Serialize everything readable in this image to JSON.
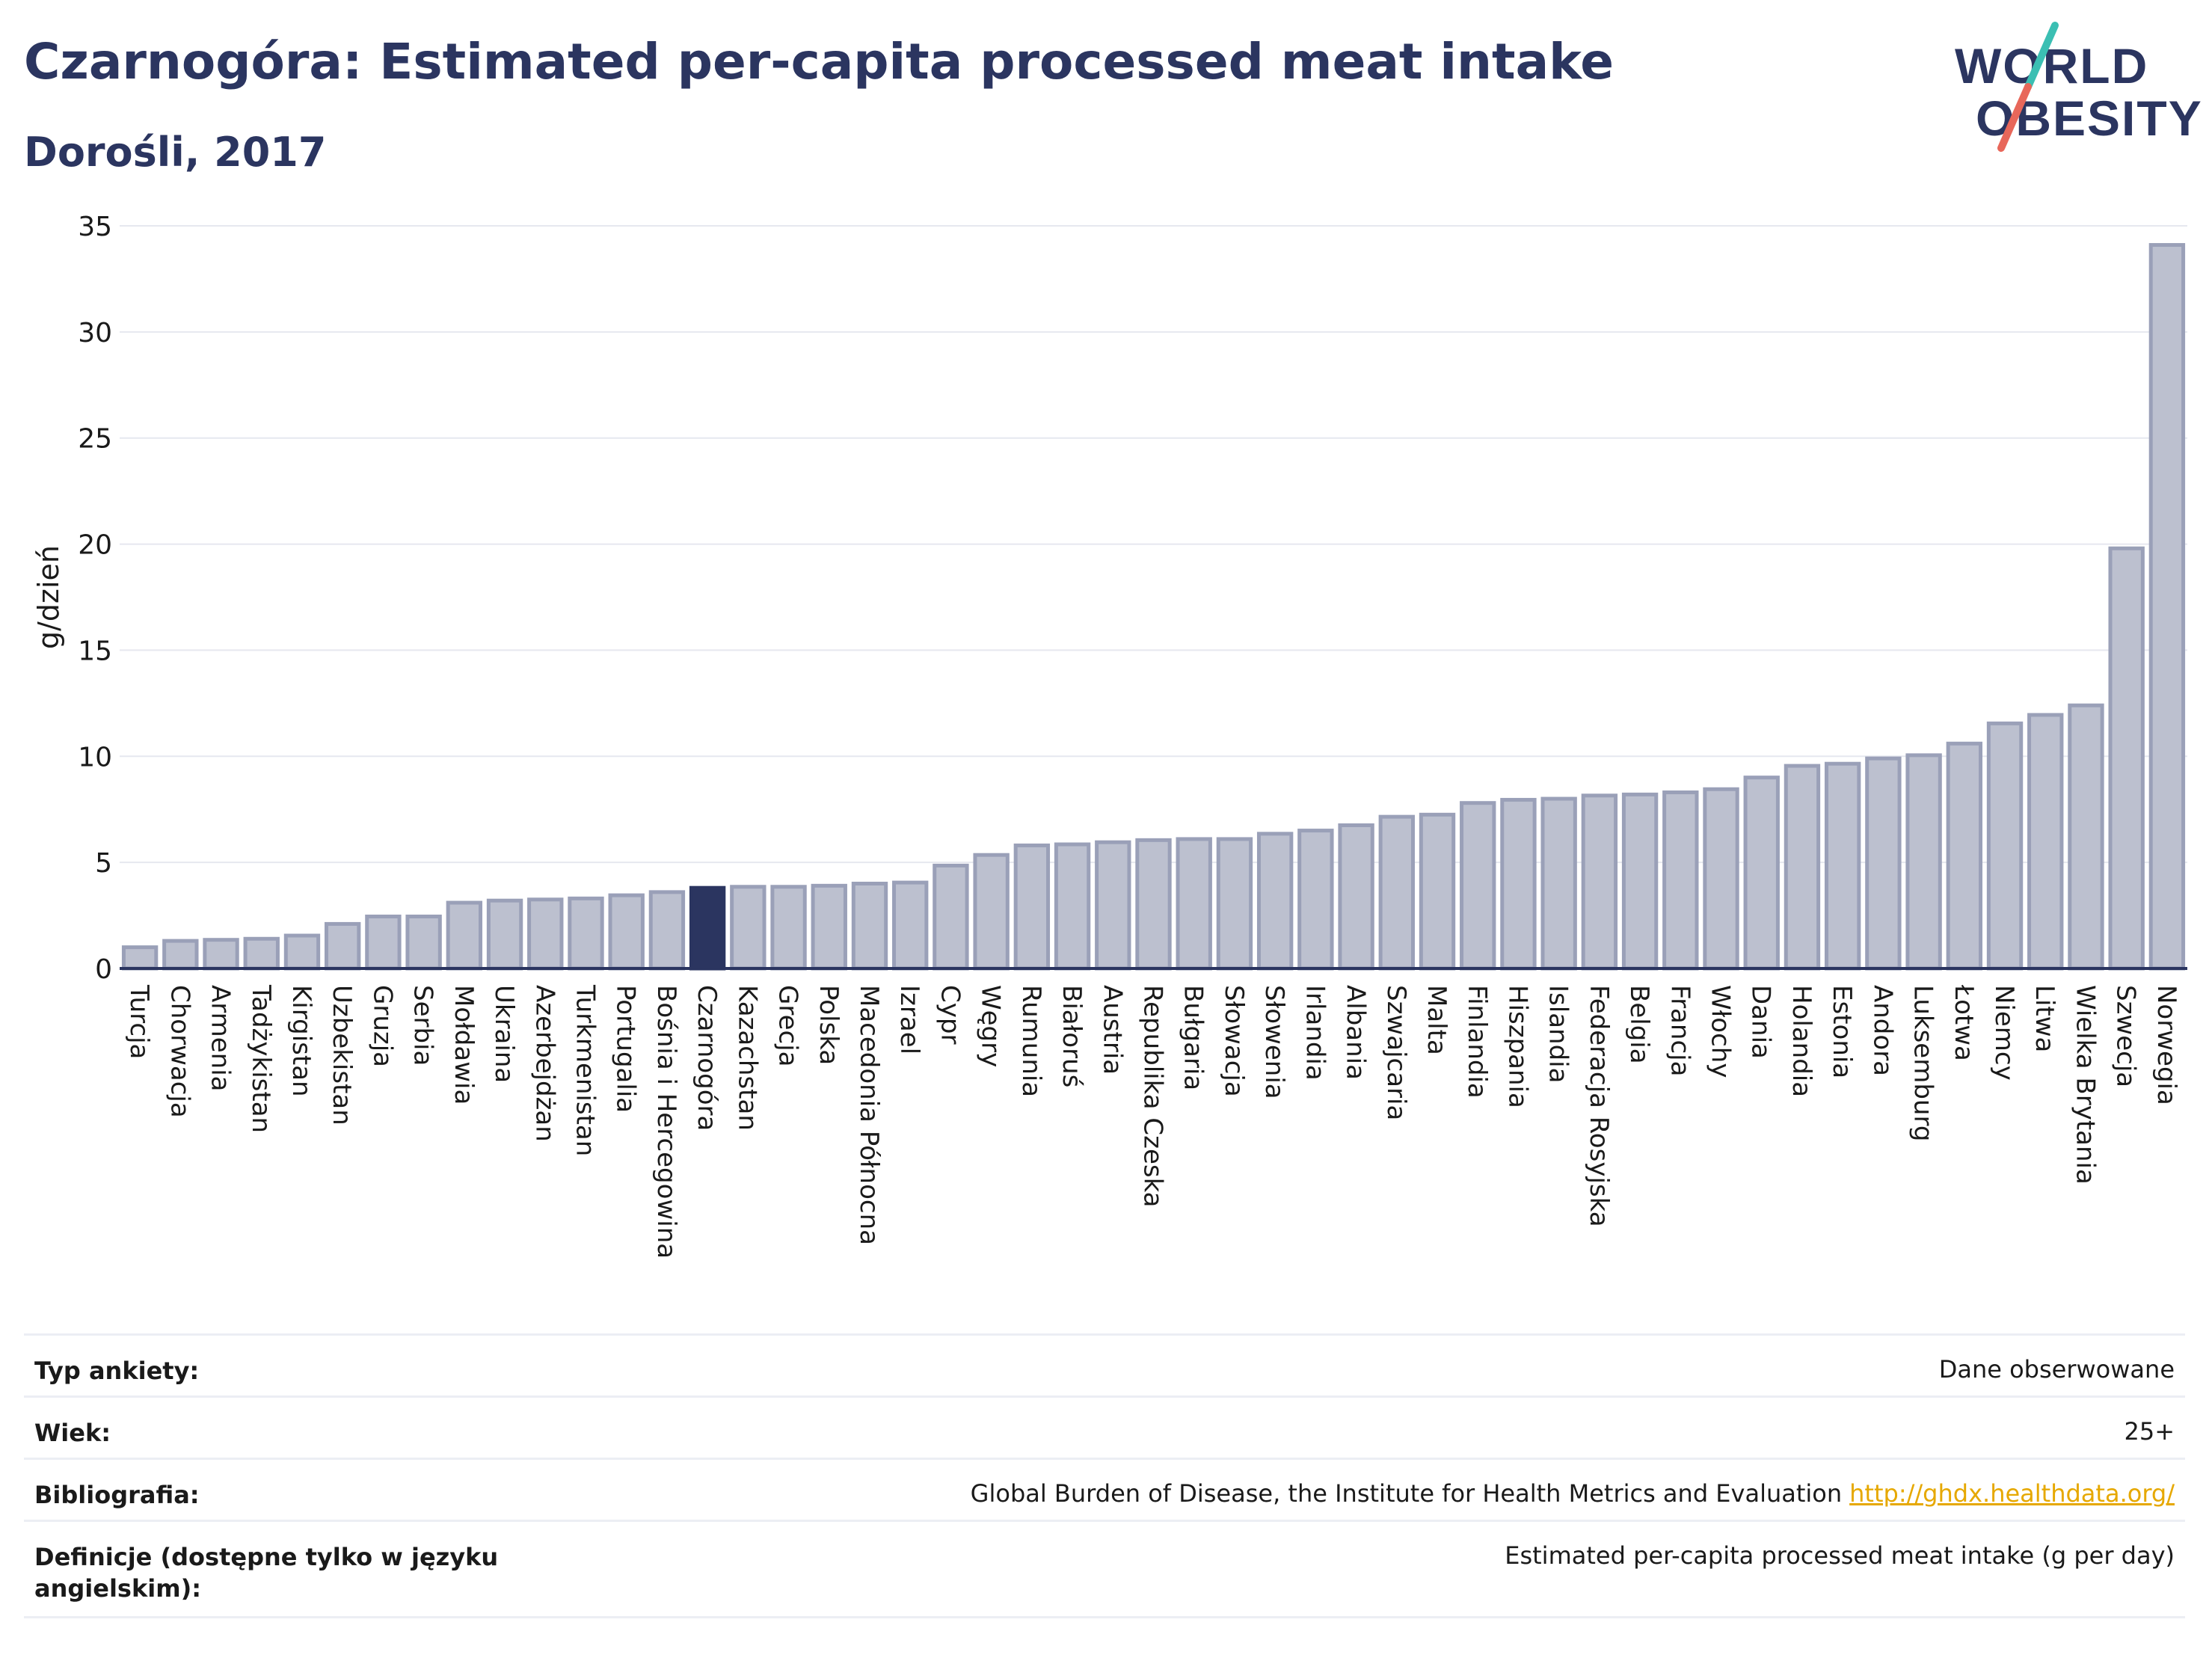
{
  "header": {
    "title": "Czarnogóra: Estimated per-capita processed meat intake",
    "subtitle": "Dorośli, 2017"
  },
  "logo": {
    "line1": "WORLD",
    "line2": "OBESITY"
  },
  "colors": {
    "bar": "#bcc0cf",
    "bar_edge": "#9aa0b8",
    "highlight": "#2b3560",
    "grid": "#e6e8ef",
    "text": "#1a1a1a",
    "link": "#e6a800",
    "logo_teal": "#3bbfb3",
    "logo_red": "#e8675a"
  },
  "chart_data": {
    "type": "bar",
    "ylabel": "g/dzień",
    "xlabel": "",
    "ylim": [
      0,
      35
    ],
    "yticks": [
      0,
      5,
      10,
      15,
      20,
      25,
      30,
      35
    ],
    "grid": true,
    "highlight": "Czarnogóra",
    "categories": [
      "Turcja",
      "Chorwacja",
      "Armenia",
      "Tadżykistan",
      "Kirgistan",
      "Uzbekistan",
      "Gruzja",
      "Serbia",
      "Mołdawia",
      "Ukraina",
      "Azerbejdżan",
      "Turkmenistan",
      "Portugalia",
      "Bośnia i Hercegowina",
      "Czarnogóra",
      "Kazachstan",
      "Grecja",
      "Polska",
      "Macedonia Północna",
      "Izrael",
      "Cypr",
      "Węgry",
      "Rumunia",
      "Białoruś",
      "Austria",
      "Republika Czeska",
      "Bułgaria",
      "Słowacja",
      "Słowenia",
      "Irlandia",
      "Albania",
      "Szwajcaria",
      "Malta",
      "Finlandia",
      "Hiszpania",
      "Islandia",
      "Federacja Rosyjska",
      "Belgia",
      "Francja",
      "Włochy",
      "Dania",
      "Holandia",
      "Estonia",
      "Andora",
      "Luksemburg",
      "Łotwa",
      "Niemcy",
      "Litwa",
      "Wielka Brytania",
      "Szwecja",
      "Norwegia"
    ],
    "values": [
      1.0,
      1.3,
      1.35,
      1.4,
      1.55,
      2.1,
      2.45,
      2.45,
      3.1,
      3.2,
      3.25,
      3.3,
      3.45,
      3.6,
      3.8,
      3.85,
      3.85,
      3.9,
      4.0,
      4.05,
      4.85,
      5.35,
      5.8,
      5.85,
      5.95,
      6.05,
      6.1,
      6.1,
      6.35,
      6.5,
      6.75,
      7.15,
      7.25,
      7.8,
      7.95,
      8.0,
      8.15,
      8.2,
      8.3,
      8.45,
      9.0,
      9.55,
      9.65,
      9.9,
      10.05,
      10.6,
      11.55,
      11.95,
      12.4,
      19.8,
      34.1
    ]
  },
  "meta": [
    {
      "label": "Typ ankiety:",
      "value": "Dane obserwowane",
      "link": ""
    },
    {
      "label": "Wiek:",
      "value": "25+",
      "link": ""
    },
    {
      "label": "Bibliografia:",
      "value": "Global Burden of Disease, the Institute for Health Metrics and Evaluation",
      "link": "http://ghdx.healthdata.org/"
    },
    {
      "label": "Definicje (dostępne tylko w języku angielskim):",
      "value": "Estimated per-capita processed meat intake (g per day)",
      "link": ""
    }
  ]
}
